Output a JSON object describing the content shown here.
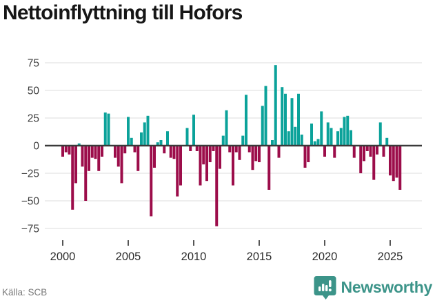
{
  "title": "Nettoinflyttning till Hofors",
  "footer": {
    "source": "Källa: SCB",
    "brand": "Newsworthy"
  },
  "colors": {
    "positive": "#0ba29a",
    "negative": "#9c0d4a",
    "grid": "#e3e3e3",
    "zero_line": "#3a3a3a",
    "axis_text": "#3d3d3d",
    "tick_mark": "#555555",
    "title_text": "#161616",
    "source_text": "#7a7a7a",
    "brand": "#3c9489",
    "background": "#ffffff"
  },
  "chart_data": {
    "type": "bar",
    "title": "Nettoinflyttning till Hofors",
    "frequency": "quarterly",
    "start": "2000-Q1",
    "end": "2025-Q4",
    "x_tick_labels": [
      "2000",
      "2005",
      "2010",
      "2015",
      "2020",
      "2025"
    ],
    "y_ticks": [
      75,
      50,
      25,
      0,
      -25,
      -50,
      -75
    ],
    "ylim": [
      -80,
      80
    ],
    "grid": true,
    "legend": false,
    "series": [
      {
        "name": "Nettoinflyttning",
        "values": [
          -10,
          -6,
          -8,
          -58,
          -34,
          2,
          -19,
          -50,
          -23,
          -11,
          -12,
          -23,
          -10,
          30,
          29,
          0,
          -11,
          -19,
          -34,
          -7,
          26,
          7,
          -6,
          -23,
          12,
          21,
          27,
          -64,
          -20,
          3,
          5,
          -7,
          13,
          -11,
          -12,
          -46,
          -36,
          0,
          16,
          -5,
          28,
          -5,
          -36,
          -17,
          -32,
          -15,
          -5,
          -73,
          -21,
          9,
          32,
          -6,
          -36,
          -6,
          -13,
          9,
          46,
          -6,
          -22,
          -14,
          -15,
          36,
          54,
          -40,
          5,
          73,
          -11,
          53,
          47,
          13,
          43,
          17,
          47,
          10,
          -20,
          -15,
          20,
          4,
          6,
          31,
          -10,
          21,
          16,
          -11,
          13,
          16,
          26,
          27,
          14,
          -11,
          0,
          -25,
          -14,
          -5,
          -10,
          -31,
          -8,
          21,
          -10,
          7,
          -27,
          -32,
          -29,
          -40
        ]
      }
    ]
  }
}
